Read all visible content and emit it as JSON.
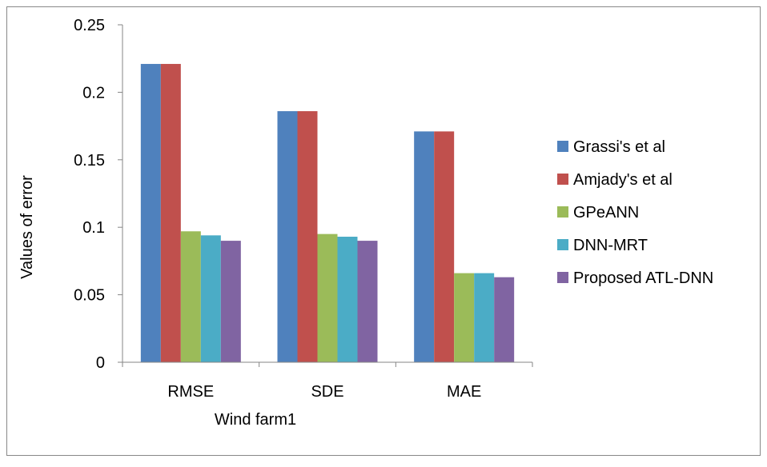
{
  "chart_data": {
    "type": "bar",
    "title": "",
    "xlabel": "Wind farm1",
    "ylabel": "Values of error",
    "categories": [
      "RMSE",
      "SDE",
      "MAE"
    ],
    "ylim": [
      0,
      0.25
    ],
    "yticks": [
      "0",
      "0.05",
      "0.1",
      "0.15",
      "0.2",
      "0.25"
    ],
    "grid": false,
    "legend_position": "right",
    "series": [
      {
        "name": "Grassi's et al",
        "color": "#4f81bd",
        "values": [
          0.221,
          0.186,
          0.171
        ]
      },
      {
        "name": "Amjady's et al",
        "color": "#c0504d",
        "values": [
          0.221,
          0.186,
          0.171
        ]
      },
      {
        "name": "GPeANN",
        "color": "#9bbb59",
        "values": [
          0.097,
          0.095,
          0.066
        ]
      },
      {
        "name": "DNN-MRT",
        "color": "#4bacc6",
        "values": [
          0.094,
          0.093,
          0.066
        ]
      },
      {
        "name": "Proposed ATL-DNN",
        "color": "#8064a2",
        "values": [
          0.09,
          0.09,
          0.063
        ]
      }
    ]
  }
}
